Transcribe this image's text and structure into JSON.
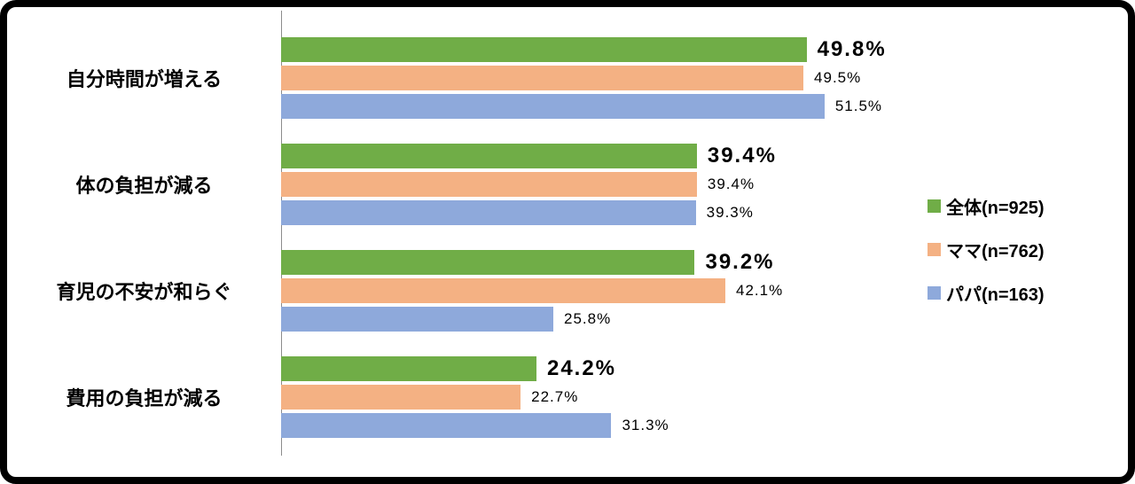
{
  "chart_data": {
    "type": "bar",
    "orientation": "horizontal",
    "title": "",
    "xlabel": "",
    "ylabel": "",
    "xlim": [
      0,
      100
    ],
    "grid": false,
    "legend_position": "right",
    "value_suffix": "%",
    "categories": [
      "自分時間が増える",
      "体の負担が減る",
      "育児の不安が和らぐ",
      "費用の負担が減る"
    ],
    "series": [
      {
        "name": "全体(n=925)",
        "color": "#70AD47",
        "values": [
          49.8,
          39.4,
          39.2,
          24.2
        ]
      },
      {
        "name": "ママ(n=762)",
        "color": "#F4B183",
        "values": [
          49.5,
          39.4,
          42.1,
          22.7
        ]
      },
      {
        "name": "パパ(n=163)",
        "color": "#8EA9DB",
        "values": [
          51.5,
          39.3,
          25.8,
          31.3
        ]
      }
    ]
  }
}
